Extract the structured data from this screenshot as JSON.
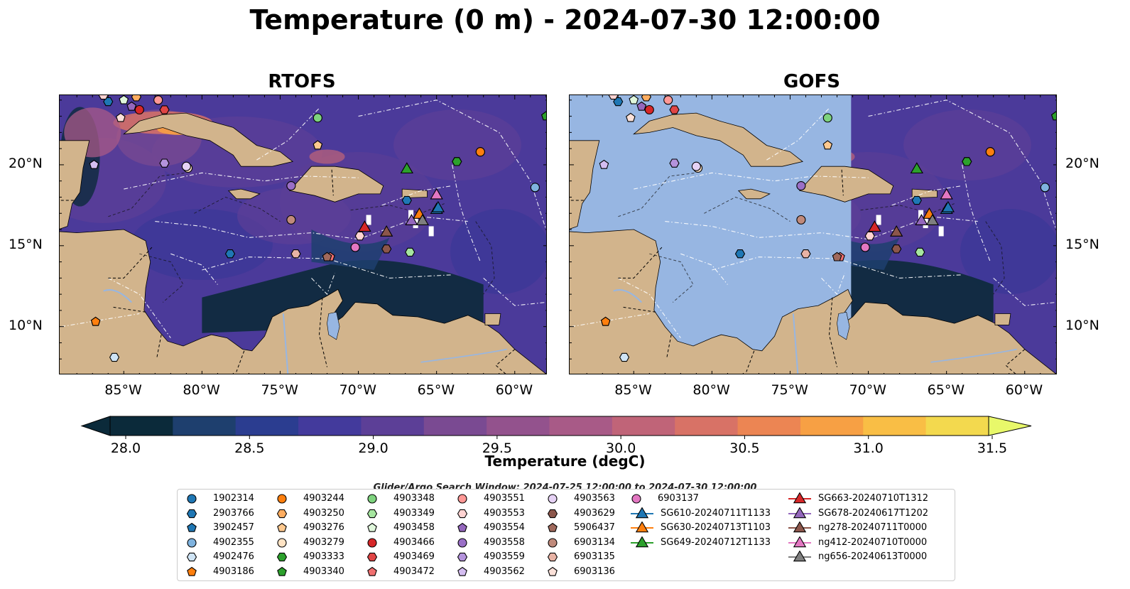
{
  "title": "Temperature (0 m) - 2024-07-30 12:00:00",
  "panels": [
    {
      "title": "RTOFS"
    },
    {
      "title": "GOFS"
    }
  ],
  "lon_ticks": [
    "85°W",
    "80°W",
    "75°W",
    "70°W",
    "65°W",
    "60°W"
  ],
  "lat_ticks": [
    "20°N",
    "15°N",
    "10°N"
  ],
  "colorbar": {
    "label": "Temperature (degC)",
    "ticks": [
      "28.0",
      "28.5",
      "29.0",
      "29.5",
      "30.0",
      "30.5",
      "31.0",
      "31.5"
    ],
    "colors": [
      "#0b2a3a",
      "#1e3f6e",
      "#2b3d90",
      "#433a9c",
      "#5c3f97",
      "#7a4a92",
      "#93528d",
      "#a85a87",
      "#c06478",
      "#d87266",
      "#ec8553",
      "#f7a044",
      "#f9be45",
      "#f3d94e",
      "#e8f86a"
    ]
  },
  "window_note": "Glider/Argo Search Window: 2024-07-25 12:00:00 to 2024-07-30 12:00:00",
  "legend": [
    {
      "label": "1902314",
      "marker": "circle",
      "color": "#1f77b4"
    },
    {
      "label": "2903766",
      "marker": "hexagon",
      "color": "#1f77b4"
    },
    {
      "label": "3902457",
      "marker": "pentagon",
      "color": "#1f77b4"
    },
    {
      "label": "4902355",
      "marker": "circle",
      "color": "#7fb3df"
    },
    {
      "label": "4902476",
      "marker": "hexagon",
      "color": "#cfe4f5"
    },
    {
      "label": "4903186",
      "marker": "pentagon",
      "color": "#ff7f0e"
    },
    {
      "label": "4903244",
      "marker": "circle",
      "color": "#ff7f0e"
    },
    {
      "label": "4903250",
      "marker": "hexagon",
      "color": "#ffad60"
    },
    {
      "label": "4903276",
      "marker": "pentagon",
      "color": "#ffc98f"
    },
    {
      "label": "4903279",
      "marker": "circle",
      "color": "#ffe3c4"
    },
    {
      "label": "4903333",
      "marker": "hexagon",
      "color": "#2ca02c"
    },
    {
      "label": "4903340",
      "marker": "pentagon",
      "color": "#2ca02c"
    },
    {
      "label": "4903348",
      "marker": "circle",
      "color": "#7ed37e"
    },
    {
      "label": "4903349",
      "marker": "hexagon",
      "color": "#a6e6a0"
    },
    {
      "label": "4903458",
      "marker": "pentagon",
      "color": "#e0f7dc"
    },
    {
      "label": "4903466",
      "marker": "circle",
      "color": "#d62728"
    },
    {
      "label": "4903469",
      "marker": "hexagon",
      "color": "#e04545"
    },
    {
      "label": "4903472",
      "marker": "pentagon",
      "color": "#f07070"
    },
    {
      "label": "4903551",
      "marker": "circle",
      "color": "#ff9896"
    },
    {
      "label": "4903553",
      "marker": "hexagon",
      "color": "#ffd3d2"
    },
    {
      "label": "4903554",
      "marker": "pentagon",
      "color": "#9467bd"
    },
    {
      "label": "4903558",
      "marker": "circle",
      "color": "#9a6fc7"
    },
    {
      "label": "4903559",
      "marker": "hexagon",
      "color": "#b493dc"
    },
    {
      "label": "4903562",
      "marker": "pentagon",
      "color": "#d4bdf0"
    },
    {
      "label": "4903563",
      "marker": "circle",
      "color": "#e6d2f5"
    },
    {
      "label": "4903629",
      "marker": "hexagon",
      "color": "#8c564b"
    },
    {
      "label": "5906437",
      "marker": "pentagon",
      "color": "#a0695c"
    },
    {
      "label": "6903134",
      "marker": "circle",
      "color": "#c08a7b"
    },
    {
      "label": "6903135",
      "marker": "hexagon",
      "color": "#e8b3a5"
    },
    {
      "label": "6903136",
      "marker": "pentagon",
      "color": "#fbe1d9"
    },
    {
      "label": "6903137",
      "marker": "circle",
      "color": "#e377c2"
    },
    {
      "label": "SG610-20240711T1133",
      "marker": "triangle",
      "color": "#1f77b4"
    },
    {
      "label": "SG630-20240713T1103",
      "marker": "triangle",
      "color": "#ff7f0e"
    },
    {
      "label": "SG649-20240712T1133",
      "marker": "triangle",
      "color": "#2ca02c"
    },
    {
      "label": "SG663-20240710T1312",
      "marker": "triangle",
      "color": "#d62728"
    },
    {
      "label": "SG678-20240617T1202",
      "marker": "triangle",
      "color": "#9467bd"
    },
    {
      "label": "ng278-20240711T0000",
      "marker": "triangle",
      "color": "#8c564b"
    },
    {
      "label": "ng412-20240710T0000",
      "marker": "triangle",
      "color": "#e377c2"
    },
    {
      "label": "ng656-20240613T0000",
      "marker": "triangle",
      "color": "#7f7f7f"
    }
  ],
  "colors": {
    "land": "#d2b48c",
    "masked_ocean": "#97b6e2",
    "ocean_base": "#4b3a9a",
    "cold_band": "#0d2a3c",
    "warm_patch": "#d87266"
  }
}
